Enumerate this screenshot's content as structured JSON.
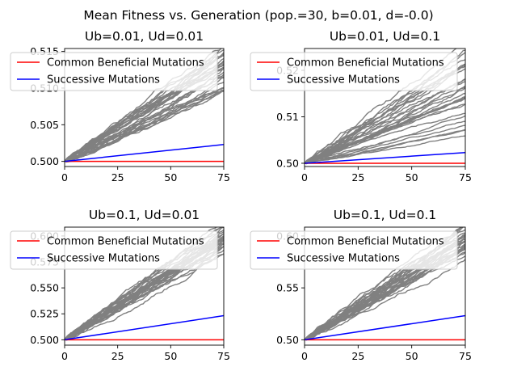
{
  "figure": {
    "title": "Mean Fitness vs. Generation (pop.=30, b=0.01, d=-0.0)"
  },
  "colors": {
    "trajectory": "#808080",
    "common_beneficial": "#ff0000",
    "successive": "#0000ff"
  },
  "legend": {
    "placement": "upper left",
    "entries": [
      "Common Beneficial Mutations",
      "Successive Mutations"
    ]
  },
  "chart_data": [
    {
      "type": "line",
      "title": "Ub=0.01, Ud=0.01",
      "xlim": [
        0,
        75
      ],
      "ylim": [
        0.4993,
        0.5154
      ],
      "xticks": [
        0,
        25,
        50,
        75
      ],
      "xtick_labels": [
        "0",
        "25",
        "50",
        "75"
      ],
      "yticks": [
        0.5,
        0.505,
        0.51,
        0.515
      ],
      "ytick_labels": [
        "0.500",
        "0.505",
        "0.510",
        "0.515"
      ],
      "series": [
        {
          "name": "Common Beneficial Mutations",
          "x": [
            0,
            75
          ],
          "y": [
            0.5,
            0.5
          ]
        },
        {
          "name": "Successive Mutations",
          "x": [
            0,
            75
          ],
          "y": [
            0.5,
            0.5023
          ]
        }
      ],
      "trajectories": {
        "count": 30,
        "x_range": [
          0,
          75
        ],
        "start": 0.5,
        "end_range": [
          0.5085,
          0.5155
        ]
      }
    },
    {
      "type": "line",
      "title": "Ub=0.01, Ud=0.1",
      "xlim": [
        0,
        75
      ],
      "ylim": [
        0.4993,
        0.5247
      ],
      "xticks": [
        0,
        25,
        50,
        75
      ],
      "xtick_labels": [
        "0",
        "25",
        "50",
        "75"
      ],
      "yticks": [
        0.5,
        0.51,
        0.52
      ],
      "ytick_labels": [
        "0.50",
        "0.51",
        "0.52"
      ],
      "series": [
        {
          "name": "Common Beneficial Mutations",
          "x": [
            0,
            75
          ],
          "y": [
            0.5,
            0.5
          ]
        },
        {
          "name": "Successive Mutations",
          "x": [
            0,
            75
          ],
          "y": [
            0.5,
            0.5023
          ]
        }
      ],
      "trajectories": {
        "count": 30,
        "x_range": [
          0,
          75
        ],
        "start": 0.5,
        "end_range": [
          0.506,
          0.5245
        ]
      }
    },
    {
      "type": "line",
      "title": "Ub=0.1, Ud=0.01",
      "xlim": [
        0,
        75
      ],
      "ylim": [
        0.4948,
        0.6085
      ],
      "xticks": [
        0,
        25,
        50,
        75
      ],
      "xtick_labels": [
        "0",
        "25",
        "50",
        "75"
      ],
      "yticks": [
        0.5,
        0.525,
        0.55,
        0.575,
        0.6
      ],
      "ytick_labels": [
        "0.500",
        "0.525",
        "0.550",
        "0.575",
        "0.600"
      ],
      "series": [
        {
          "name": "Common Beneficial Mutations",
          "x": [
            0,
            75
          ],
          "y": [
            0.5,
            0.5
          ]
        },
        {
          "name": "Successive Mutations",
          "x": [
            0,
            75
          ],
          "y": [
            0.5,
            0.5232
          ]
        }
      ],
      "trajectories": {
        "count": 30,
        "x_range": [
          0,
          75
        ],
        "start": 0.5,
        "end_range": [
          0.592,
          0.607
        ]
      }
    },
    {
      "type": "line",
      "title": "Ub=0.1, Ud=0.1",
      "xlim": [
        0,
        75
      ],
      "ylim": [
        0.4948,
        0.6085
      ],
      "xticks": [
        0,
        25,
        50,
        75
      ],
      "xtick_labels": [
        "0",
        "25",
        "50",
        "75"
      ],
      "yticks": [
        0.5,
        0.55,
        0.6
      ],
      "ytick_labels": [
        "0.50",
        "0.55",
        "0.60"
      ],
      "series": [
        {
          "name": "Common Beneficial Mutations",
          "x": [
            0,
            75
          ],
          "y": [
            0.5,
            0.5
          ]
        },
        {
          "name": "Successive Mutations",
          "x": [
            0,
            75
          ],
          "y": [
            0.5,
            0.5232
          ]
        }
      ],
      "trajectories": {
        "count": 30,
        "x_range": [
          0,
          75
        ],
        "start": 0.5,
        "end_range": [
          0.584,
          0.607
        ]
      }
    }
  ]
}
